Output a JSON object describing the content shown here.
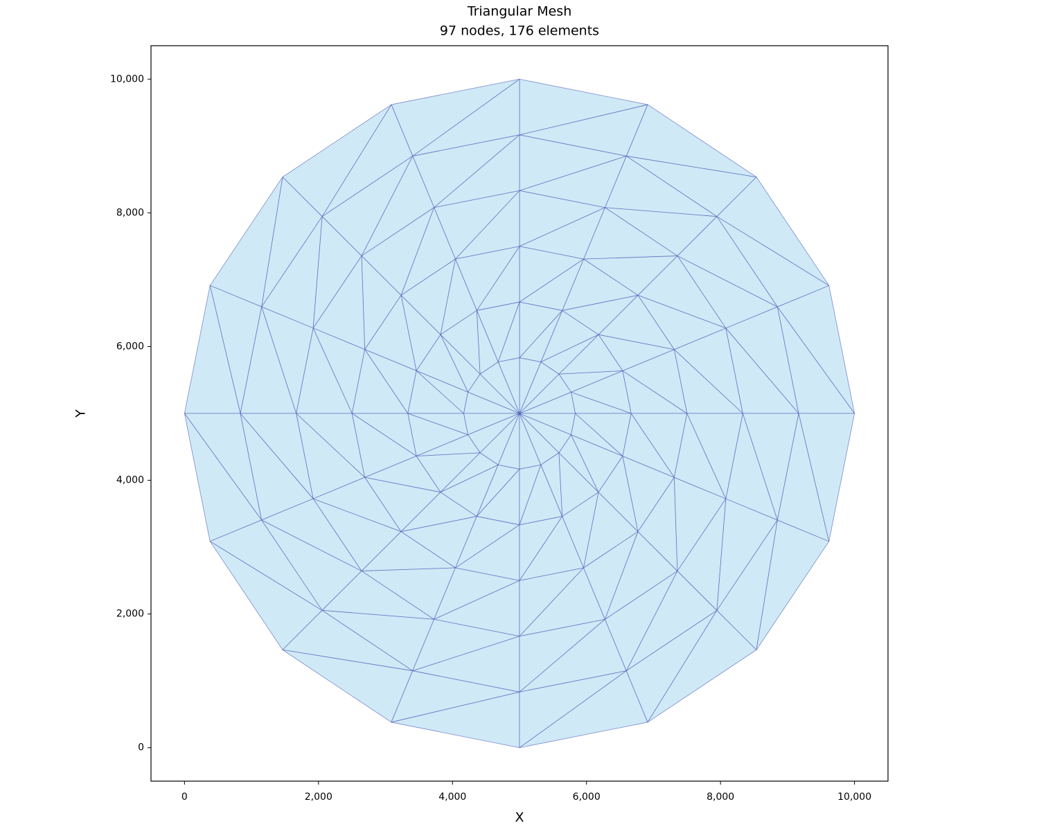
{
  "chart_data": {
    "type": "mesh",
    "title": "Triangular Mesh",
    "subtitle": "97 nodes, 176 elements",
    "x_label": "X",
    "y_label": "Y",
    "xlim": [
      -500,
      10500
    ],
    "ylim": [
      -500,
      10500
    ],
    "xticks": [
      0,
      {
        "value": 2000,
        "label": "2,000"
      },
      {
        "value": 4000,
        "label": "4,000"
      },
      {
        "value": 6000,
        "label": "6,000"
      },
      {
        "value": 8000,
        "label": "8,000"
      },
      {
        "value": 10000,
        "label": "10,000"
      }
    ],
    "yticks": [
      0,
      {
        "value": 2000,
        "label": "2,000"
      },
      {
        "value": 4000,
        "label": "4,000"
      },
      {
        "value": 6000,
        "label": "6,000"
      },
      {
        "value": 8000,
        "label": "8,000"
      },
      {
        "value": 10000,
        "label": "10,000"
      }
    ],
    "color": "#d0e9f6",
    "edgecolor": "#3f51b5",
    "grid": false,
    "nodes": {
      "x": [
        5000,
        5833,
        5770,
        5589,
        5319,
        5000,
        4681,
        4411,
        4230,
        4167,
        4230,
        4411,
        4681,
        5000,
        5319,
        5589,
        5770,
        6667,
        6540,
        6179,
        5638,
        5000,
        4362,
        3821,
        3460,
        3333,
        3460,
        3821,
        4362,
        5000,
        5638,
        6179,
        6540,
        7500,
        7310,
        6768,
        5957,
        5000,
        4043,
        3232,
        2690,
        2500,
        2690,
        3232,
        4043,
        5000,
        5957,
        6768,
        7310,
        8333,
        8080,
        7357,
        6276,
        5000,
        3724,
        2643,
        1920,
        1667,
        1920,
        2643,
        3724,
        5000,
        6276,
        7357,
        8080,
        9167,
        8850,
        7946,
        6595,
        5000,
        3405,
        2054,
        1150,
        833,
        1150,
        2054,
        3405,
        5000,
        6595,
        7946,
        8850,
        10000,
        9619,
        8536,
        6913,
        5000,
        3087,
        1464,
        381,
        0,
        381,
        1464,
        3087,
        5000,
        6913,
        8536,
        9619
      ],
      "y": [
        5000,
        5000,
        5319,
        5589,
        5770,
        5833,
        5770,
        5589,
        5319,
        5000,
        4681,
        4411,
        4230,
        4167,
        4230,
        4411,
        4681,
        5000,
        5638,
        6179,
        6540,
        6667,
        6540,
        6179,
        5638,
        5000,
        4362,
        3821,
        3460,
        3333,
        3460,
        3821,
        4362,
        5000,
        5957,
        6768,
        7310,
        7500,
        7310,
        6768,
        5957,
        5000,
        4043,
        3232,
        2690,
        2500,
        2690,
        3232,
        4043,
        5000,
        6276,
        7357,
        8080,
        8333,
        8080,
        7357,
        6276,
        5000,
        3724,
        2643,
        1920,
        1667,
        1920,
        2643,
        3724,
        5000,
        6595,
        7946,
        8850,
        9167,
        8850,
        7946,
        6595,
        5000,
        3405,
        2054,
        1150,
        833,
        1150,
        2054,
        3405,
        5000,
        6913,
        8536,
        9619,
        10000,
        9619,
        8536,
        6913,
        5000,
        3087,
        1464,
        381,
        0,
        381,
        1464,
        3087
      ]
    },
    "triangles": [
      [
        0,
        1,
        2
      ],
      [
        0,
        2,
        3
      ],
      [
        0,
        3,
        4
      ],
      [
        0,
        4,
        5
      ],
      [
        0,
        5,
        6
      ],
      [
        0,
        6,
        7
      ],
      [
        0,
        7,
        8
      ],
      [
        0,
        8,
        9
      ],
      [
        0,
        9,
        10
      ],
      [
        0,
        10,
        11
      ],
      [
        0,
        11,
        12
      ],
      [
        0,
        12,
        13
      ],
      [
        0,
        13,
        14
      ],
      [
        0,
        14,
        15
      ],
      [
        0,
        15,
        16
      ],
      [
        0,
        16,
        1
      ],
      [
        1,
        2,
        17
      ],
      [
        2,
        18,
        17
      ],
      [
        2,
        3,
        18
      ],
      [
        3,
        19,
        18
      ],
      [
        3,
        4,
        19
      ],
      [
        4,
        20,
        19
      ],
      [
        4,
        5,
        20
      ],
      [
        5,
        21,
        20
      ],
      [
        5,
        6,
        21
      ],
      [
        6,
        22,
        21
      ],
      [
        6,
        7,
        22
      ],
      [
        7,
        23,
        22
      ],
      [
        7,
        8,
        23
      ],
      [
        8,
        24,
        23
      ],
      [
        8,
        9,
        24
      ],
      [
        9,
        25,
        24
      ],
      [
        9,
        10,
        25
      ],
      [
        10,
        26,
        25
      ],
      [
        10,
        11,
        26
      ],
      [
        11,
        27,
        26
      ],
      [
        11,
        12,
        27
      ],
      [
        12,
        28,
        27
      ],
      [
        12,
        13,
        28
      ],
      [
        13,
        29,
        28
      ],
      [
        13,
        14,
        29
      ],
      [
        14,
        30,
        29
      ],
      [
        14,
        15,
        30
      ],
      [
        15,
        31,
        30
      ],
      [
        15,
        16,
        31
      ],
      [
        16,
        32,
        31
      ],
      [
        16,
        1,
        32
      ],
      [
        1,
        17,
        32
      ],
      [
        17,
        18,
        33
      ],
      [
        18,
        34,
        33
      ],
      [
        18,
        19,
        34
      ],
      [
        19,
        35,
        34
      ],
      [
        19,
        20,
        35
      ],
      [
        20,
        36,
        35
      ],
      [
        20,
        21,
        36
      ],
      [
        21,
        37,
        36
      ],
      [
        21,
        22,
        37
      ],
      [
        22,
        38,
        37
      ],
      [
        22,
        23,
        38
      ],
      [
        23,
        39,
        38
      ],
      [
        23,
        24,
        39
      ],
      [
        24,
        40,
        39
      ],
      [
        24,
        25,
        40
      ],
      [
        25,
        41,
        40
      ],
      [
        25,
        26,
        41
      ],
      [
        26,
        42,
        41
      ],
      [
        26,
        27,
        42
      ],
      [
        27,
        43,
        42
      ],
      [
        27,
        28,
        43
      ],
      [
        28,
        44,
        43
      ],
      [
        28,
        29,
        44
      ],
      [
        29,
        45,
        44
      ],
      [
        29,
        30,
        45
      ],
      [
        30,
        46,
        45
      ],
      [
        30,
        31,
        46
      ],
      [
        31,
        47,
        46
      ],
      [
        31,
        32,
        47
      ],
      [
        32,
        48,
        47
      ],
      [
        32,
        17,
        48
      ],
      [
        17,
        33,
        48
      ],
      [
        33,
        34,
        49
      ],
      [
        34,
        50,
        49
      ],
      [
        34,
        35,
        50
      ],
      [
        35,
        51,
        50
      ],
      [
        35,
        36,
        51
      ],
      [
        36,
        52,
        51
      ],
      [
        36,
        37,
        52
      ],
      [
        37,
        53,
        52
      ],
      [
        37,
        38,
        53
      ],
      [
        38,
        54,
        53
      ],
      [
        38,
        39,
        54
      ],
      [
        39,
        55,
        54
      ],
      [
        39,
        40,
        55
      ],
      [
        40,
        56,
        55
      ],
      [
        40,
        41,
        56
      ],
      [
        41,
        57,
        56
      ],
      [
        41,
        42,
        57
      ],
      [
        42,
        58,
        57
      ],
      [
        42,
        43,
        58
      ],
      [
        43,
        59,
        58
      ],
      [
        43,
        44,
        59
      ],
      [
        44,
        60,
        59
      ],
      [
        44,
        45,
        60
      ],
      [
        45,
        61,
        60
      ],
      [
        45,
        46,
        61
      ],
      [
        46,
        62,
        61
      ],
      [
        46,
        47,
        62
      ],
      [
        47,
        63,
        62
      ],
      [
        47,
        48,
        63
      ],
      [
        48,
        64,
        63
      ],
      [
        48,
        33,
        64
      ],
      [
        33,
        49,
        64
      ],
      [
        49,
        50,
        65
      ],
      [
        50,
        66,
        65
      ],
      [
        50,
        51,
        66
      ],
      [
        51,
        67,
        66
      ],
      [
        51,
        52,
        67
      ],
      [
        52,
        68,
        67
      ],
      [
        52,
        53,
        68
      ],
      [
        53,
        69,
        68
      ],
      [
        53,
        54,
        69
      ],
      [
        54,
        70,
        69
      ],
      [
        54,
        55,
        70
      ],
      [
        55,
        71,
        70
      ],
      [
        55,
        56,
        71
      ],
      [
        56,
        72,
        71
      ],
      [
        56,
        57,
        72
      ],
      [
        57,
        73,
        72
      ],
      [
        57,
        58,
        73
      ],
      [
        58,
        74,
        73
      ],
      [
        58,
        59,
        74
      ],
      [
        59,
        75,
        74
      ],
      [
        59,
        60,
        75
      ],
      [
        60,
        76,
        75
      ],
      [
        60,
        61,
        76
      ],
      [
        61,
        77,
        76
      ],
      [
        61,
        62,
        77
      ],
      [
        62,
        78,
        77
      ],
      [
        62,
        63,
        78
      ],
      [
        63,
        79,
        78
      ],
      [
        63,
        64,
        79
      ],
      [
        64,
        80,
        79
      ],
      [
        64,
        49,
        80
      ],
      [
        49,
        65,
        80
      ],
      [
        65,
        66,
        81
      ],
      [
        66,
        82,
        81
      ],
      [
        66,
        67,
        82
      ],
      [
        67,
        83,
        82
      ],
      [
        67,
        68,
        83
      ],
      [
        68,
        84,
        83
      ],
      [
        68,
        69,
        84
      ],
      [
        69,
        85,
        84
      ],
      [
        69,
        70,
        85
      ],
      [
        70,
        86,
        85
      ],
      [
        70,
        71,
        86
      ],
      [
        71,
        87,
        86
      ],
      [
        71,
        72,
        87
      ],
      [
        72,
        88,
        87
      ],
      [
        72,
        73,
        88
      ],
      [
        73,
        89,
        88
      ],
      [
        73,
        74,
        89
      ],
      [
        74,
        90,
        89
      ],
      [
        74,
        75,
        90
      ],
      [
        75,
        91,
        90
      ],
      [
        75,
        76,
        91
      ],
      [
        76,
        92,
        91
      ],
      [
        76,
        77,
        92
      ],
      [
        77,
        93,
        92
      ],
      [
        77,
        78,
        93
      ],
      [
        78,
        94,
        93
      ],
      [
        78,
        79,
        94
      ],
      [
        79,
        95,
        94
      ],
      [
        79,
        80,
        95
      ],
      [
        80,
        96,
        95
      ],
      [
        80,
        65,
        96
      ],
      [
        65,
        81,
        96
      ]
    ]
  }
}
